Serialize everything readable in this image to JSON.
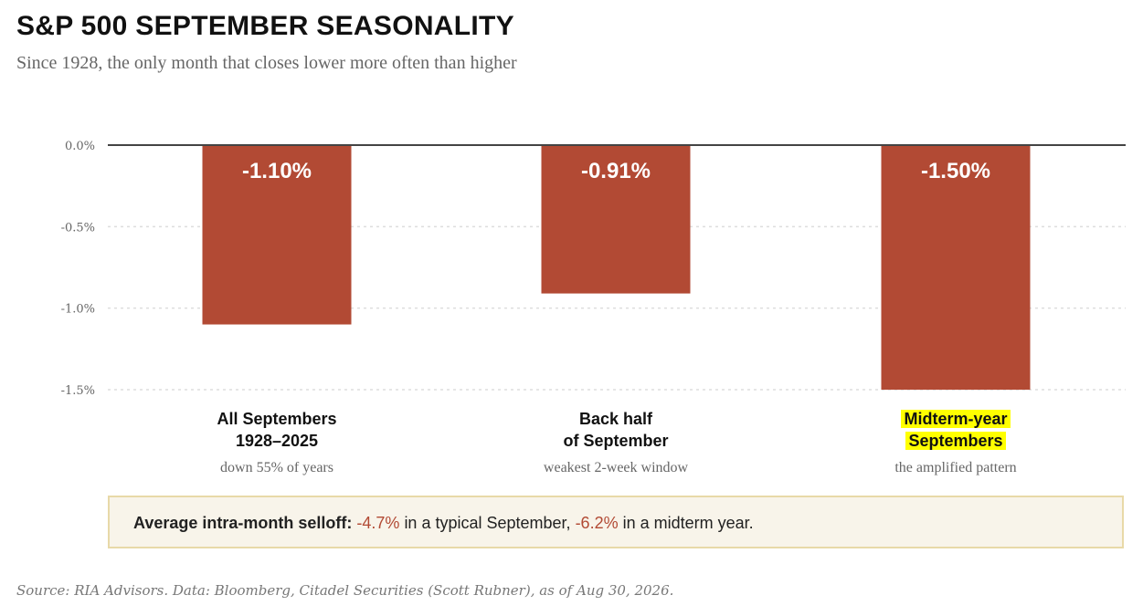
{
  "title": "S&P 500 SEPTEMBER SEASONALITY",
  "subtitle": "Since 1928, the only month that closes lower more often than higher",
  "chart_data": {
    "type": "bar",
    "categories": [
      {
        "line1": "All Septembers",
        "line2": "1928–2025",
        "sub": "down 55% of years",
        "highlight": false
      },
      {
        "line1": "Back half",
        "line2": "of September",
        "sub": "weakest 2-week window",
        "highlight": false
      },
      {
        "line1": "Midterm-year",
        "line2": "Septembers",
        "sub": "the amplified pattern",
        "highlight": true
      }
    ],
    "values": [
      -1.1,
      -0.91,
      -1.5
    ],
    "value_labels": [
      "-1.10%",
      "-0.91%",
      "-1.50%"
    ],
    "ylim": [
      -1.5,
      0
    ],
    "yticks": [
      {
        "value": 0,
        "label": "0.0%"
      },
      {
        "value": -0.5,
        "label": "-0.5%"
      },
      {
        "value": -1.0,
        "label": "-1.0%"
      },
      {
        "value": -1.5,
        "label": "-1.5%"
      }
    ],
    "bar_color": "#b24a34",
    "grid": true
  },
  "callout": {
    "label": "Average intra-month selloff:",
    "value1": "-4.7%",
    "text1": "in a typical September,",
    "value2": "-6.2%",
    "text2": "in a midterm year."
  },
  "source": "Source: RIA Advisors. Data: Bloomberg, Citadel Securities (Scott Rubner), as of Aug 30, 2026."
}
